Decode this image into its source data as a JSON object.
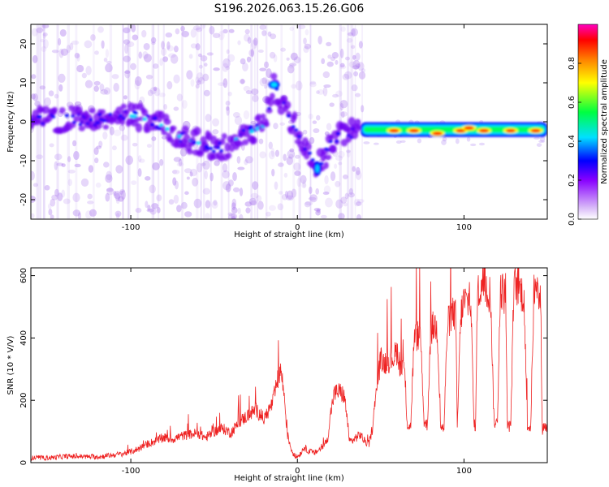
{
  "figure_title": "S196.2026.063.15.26.G06",
  "chart_data": [
    {
      "type": "heatmap",
      "name": "spectrogram",
      "xlabel": "Height of straight line (km)",
      "ylabel": "Frequency (Hz)",
      "xlim": [
        -160,
        150
      ],
      "ylim": [
        -25,
        25
      ],
      "xticks": [
        -100,
        0,
        100
      ],
      "yticks": [
        -20,
        -10,
        0,
        10,
        20
      ],
      "xtick_labels": [
        "-100",
        "0",
        "100"
      ],
      "ytick_labels": [
        "-20",
        "-10",
        "0",
        "10",
        "20"
      ],
      "colorbar": {
        "label": "Normalized spectral amplitude",
        "range": [
          0,
          1
        ],
        "ticks": [
          0.0,
          0.2,
          0.4,
          0.6,
          0.8
        ],
        "tick_labels": [
          "0.0",
          "0.2",
          "0.4",
          "0.6",
          "0.8"
        ],
        "colors": [
          "#ffffff",
          "#d8b8f8",
          "#8800ff",
          "#0000ff",
          "#00e0ff",
          "#00ff40",
          "#ffff00",
          "#ff8000",
          "#ff0000",
          "#ff00c0"
        ]
      },
      "ridge": {
        "description_free_points": [
          {
            "x": -160,
            "f": 0.5
          },
          {
            "x": -120,
            "f": 0.5
          },
          {
            "x": -100,
            "f": 1.5
          },
          {
            "x": -85,
            "f": 0
          },
          {
            "x": -70,
            "f": -4
          },
          {
            "x": -55,
            "f": -6
          },
          {
            "x": -45,
            "f": -7
          },
          {
            "x": -35,
            "f": -4
          },
          {
            "x": -20,
            "f": -1
          },
          {
            "x": -14,
            "f": 9.5
          },
          {
            "x": -8,
            "f": 4
          },
          {
            "x": 12,
            "f": -12
          },
          {
            "x": 25,
            "f": -3
          },
          {
            "x": 40,
            "f": -2
          },
          {
            "x": 150,
            "f": -2
          }
        ],
        "strong_segment": {
          "x_start": 38,
          "x_end": 150,
          "f": -2
        }
      }
    },
    {
      "type": "line",
      "name": "snr",
      "xlabel": "Height of straight line (km)",
      "ylabel": "SNR (10 * V/V)",
      "xlim": [
        -160,
        150
      ],
      "ylim": [
        0,
        625
      ],
      "xticks": [
        -100,
        0,
        100
      ],
      "yticks": [
        0,
        200,
        400,
        600
      ],
      "xtick_labels": [
        "-100",
        "0",
        "100"
      ],
      "ytick_labels": [
        "0",
        "200",
        "400",
        "600"
      ],
      "color": "#ee2222",
      "series": [
        {
          "name": "SNR",
          "x": [
            -160,
            -150,
            -140,
            -130,
            -120,
            -110,
            -105,
            -100,
            -95,
            -90,
            -85,
            -80,
            -75,
            -70,
            -65,
            -60,
            -55,
            -50,
            -45,
            -40,
            -35,
            -30,
            -25,
            -20,
            -15,
            -12,
            -10,
            -8,
            -6,
            -4,
            -2,
            0,
            2,
            4,
            6,
            8,
            10,
            14,
            18,
            20,
            22,
            25,
            28,
            30,
            31,
            33,
            35,
            38,
            40,
            43,
            45,
            48,
            50,
            52,
            55,
            58,
            60,
            62,
            64,
            66,
            68,
            70,
            72,
            74,
            76,
            78,
            80,
            82,
            84,
            86,
            88,
            90,
            92,
            94,
            95,
            96,
            98,
            100,
            102,
            104,
            106,
            107,
            108,
            110,
            112,
            114,
            116,
            118,
            120,
            122,
            124,
            125,
            126,
            128,
            130,
            132,
            134,
            136,
            138,
            140,
            142,
            144,
            146,
            147,
            148,
            150
          ],
          "y": [
            15,
            15,
            20,
            20,
            18,
            25,
            28,
            35,
            45,
            60,
            70,
            80,
            75,
            85,
            90,
            95,
            80,
            100,
            110,
            95,
            130,
            150,
            170,
            140,
            190,
            260,
            300,
            220,
            90,
            50,
            20,
            20,
            30,
            50,
            40,
            35,
            30,
            45,
            70,
            160,
            220,
            230,
            215,
            140,
            70,
            70,
            80,
            90,
            70,
            60,
            110,
            260,
            330,
            320,
            330,
            340,
            360,
            300,
            320,
            120,
            115,
            390,
            410,
            400,
            130,
            120,
            420,
            440,
            430,
            115,
            110,
            440,
            470,
            480,
            470,
            110,
            470,
            520,
            510,
            530,
            120,
            120,
            540,
            560,
            580,
            550,
            540,
            130,
            125,
            560,
            540,
            530,
            120,
            115,
            560,
            570,
            550,
            540,
            120,
            110,
            550,
            540,
            520,
            100,
            120,
            110
          ]
        }
      ]
    }
  ]
}
